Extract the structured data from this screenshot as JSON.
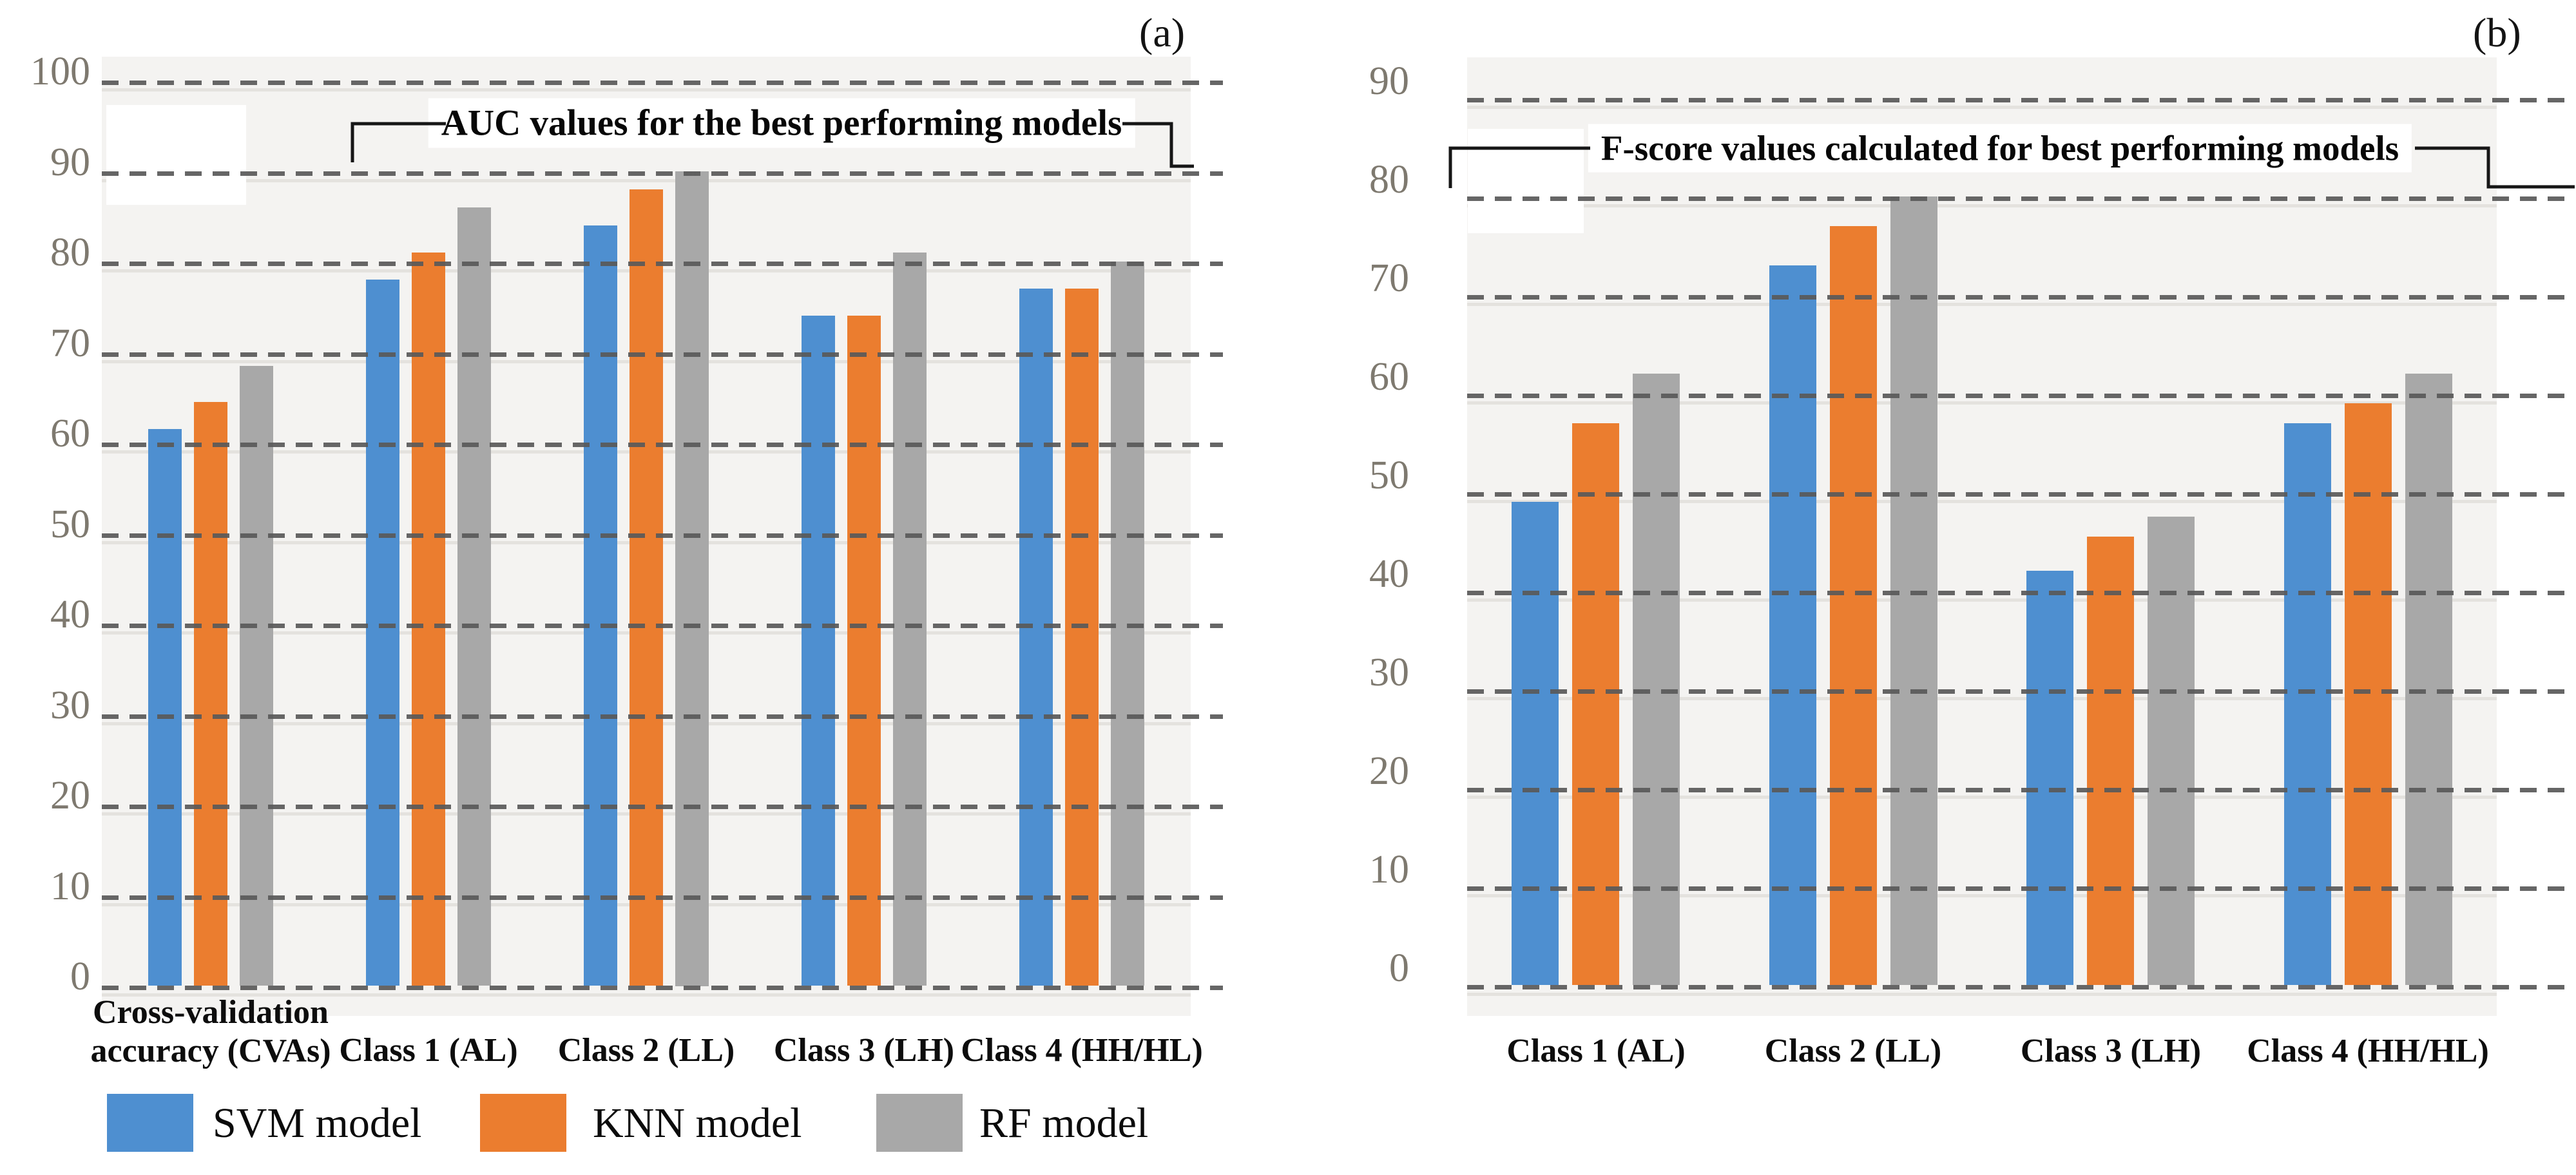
{
  "panels": [
    {
      "tag": "(a)"
    },
    {
      "tag": "(b)"
    }
  ],
  "legend": {
    "items": [
      {
        "label": "SVM model",
        "color": "#4e8fd0"
      },
      {
        "label": "KNN model",
        "color": "#eb7d2f"
      },
      {
        "label": "RF model",
        "color": "#a8a8a8"
      }
    ]
  },
  "colors": {
    "svm_blue": "#4e8fd0",
    "knn_orange": "#eb7d2f",
    "rf_gray": "#a8a8a8",
    "plot_background": "#f4f3f1",
    "gridline_dash": "#595959",
    "tick_text": "#7e796f"
  },
  "chart_data": [
    {
      "type": "bar",
      "title": "AUC values for the best performing models",
      "categories": [
        "Cross-validation\naccuracy (CVAs)",
        "Class 1 (AL)",
        "Class 2 (LL)",
        "Class 3 (LH)",
        "Class 4 (HH/HL)"
      ],
      "series": [
        {
          "name": "SVM model",
          "color": "#4e8fd0",
          "values": [
            61.5,
            78,
            84,
            74,
            77
          ]
        },
        {
          "name": "KNN model",
          "color": "#eb7d2f",
          "values": [
            64.5,
            81,
            88,
            74,
            77
          ]
        },
        {
          "name": "RF model",
          "color": "#a8a8a8",
          "values": [
            68.5,
            86,
            90,
            81,
            80
          ]
        }
      ],
      "ylim": [
        0,
        100
      ],
      "ytick_step": 10,
      "xlabel": "",
      "ylabel": "",
      "grid": "dashed-horizontal",
      "legend_position": "bottom"
    },
    {
      "type": "bar",
      "title": "F-score values calculated for best performing models",
      "categories": [
        "Class 1 (AL)",
        "Class 2 (LL)",
        "Class 3 (LH)",
        "Class 4 (HH/HL)"
      ],
      "series": [
        {
          "name": "SVM model",
          "color": "#4e8fd0",
          "values": [
            49,
            73,
            42,
            57
          ]
        },
        {
          "name": "KNN model",
          "color": "#eb7d2f",
          "values": [
            57,
            77,
            45.5,
            59
          ]
        },
        {
          "name": "RF model",
          "color": "#a8a8a8",
          "values": [
            62,
            80,
            47.5,
            62
          ]
        }
      ],
      "ylim": [
        0,
        90
      ],
      "ytick_step": 10,
      "xlabel": "",
      "ylabel": "",
      "grid": "dashed-horizontal",
      "legend_position": "none"
    }
  ]
}
